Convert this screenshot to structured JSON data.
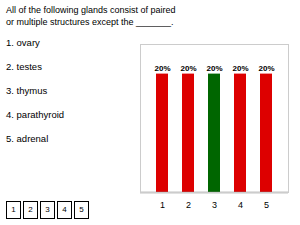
{
  "chart_data": {
    "type": "bar",
    "title": "All of the following glands consist of paired",
    "subtitle": "or multiple structures except the _______.",
    "annotations": [
      "1. ovary",
      "2. testes",
      "3. thymus",
      "4. parathyroid",
      "5. adrenal"
    ],
    "categories": [
      "1",
      "2",
      "3",
      "4",
      "5"
    ],
    "values": [
      20,
      20,
      20,
      20,
      20
    ],
    "value_labels": [
      "20%",
      "20%",
      "20%",
      "20%",
      "20%"
    ],
    "colors": [
      "#dd0000",
      "#dd0000",
      "#006600",
      "#dd0000",
      "#dd0000"
    ],
    "ylim": [
      0,
      25
    ],
    "yticks": [],
    "data_labels": true,
    "tick_labels": "x",
    "grid": false
  }
}
